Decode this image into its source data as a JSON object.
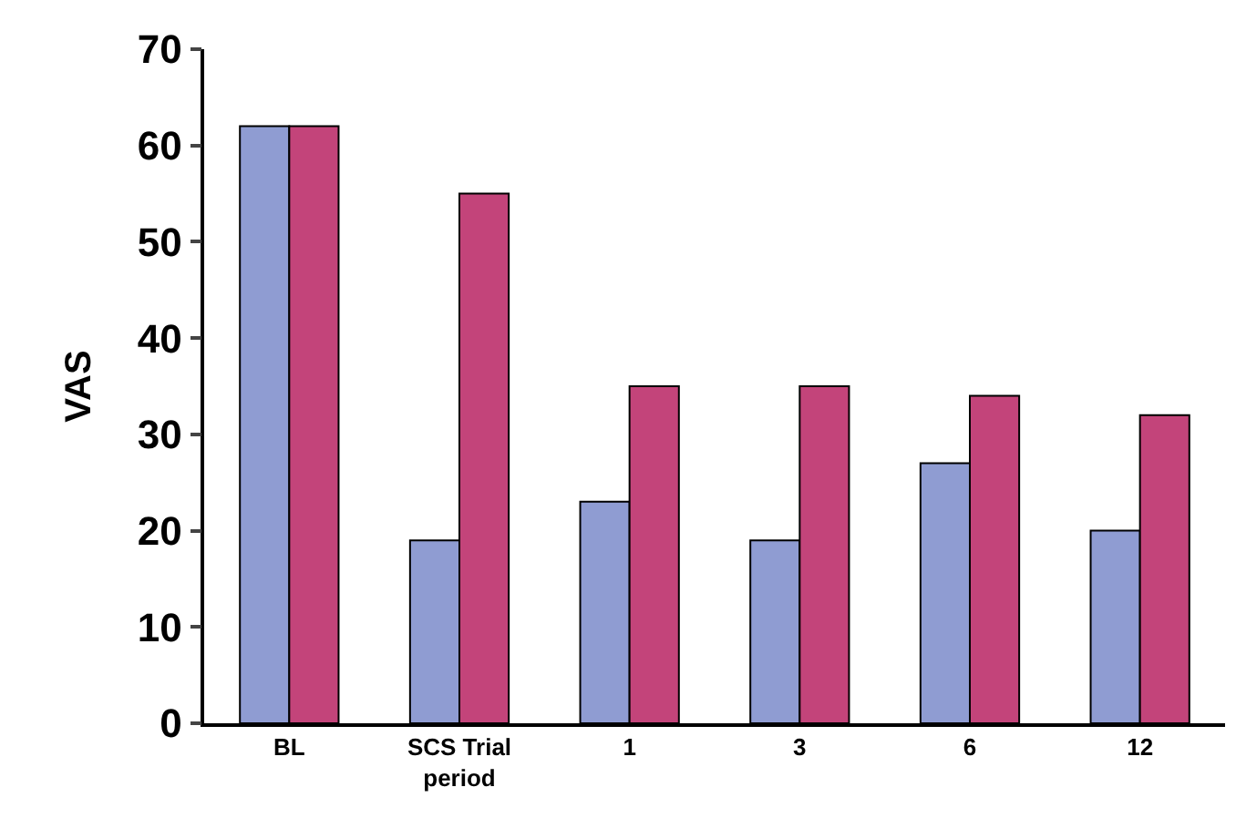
{
  "chart_data": {
    "type": "bar",
    "ylabel": "VAS",
    "categories": [
      "BL",
      "SCS Trial period",
      "1",
      "3",
      "6",
      "12"
    ],
    "series": [
      {
        "color": "#8f9cd2",
        "values": [
          62,
          19,
          23,
          19,
          27,
          20
        ]
      },
      {
        "color": "#c3447a",
        "values": [
          62,
          55,
          35,
          35,
          34,
          32
        ]
      }
    ],
    "ylim": [
      0,
      70
    ],
    "yticks": [
      0,
      10,
      20,
      30,
      40,
      50,
      60,
      70
    ],
    "grid": false
  }
}
